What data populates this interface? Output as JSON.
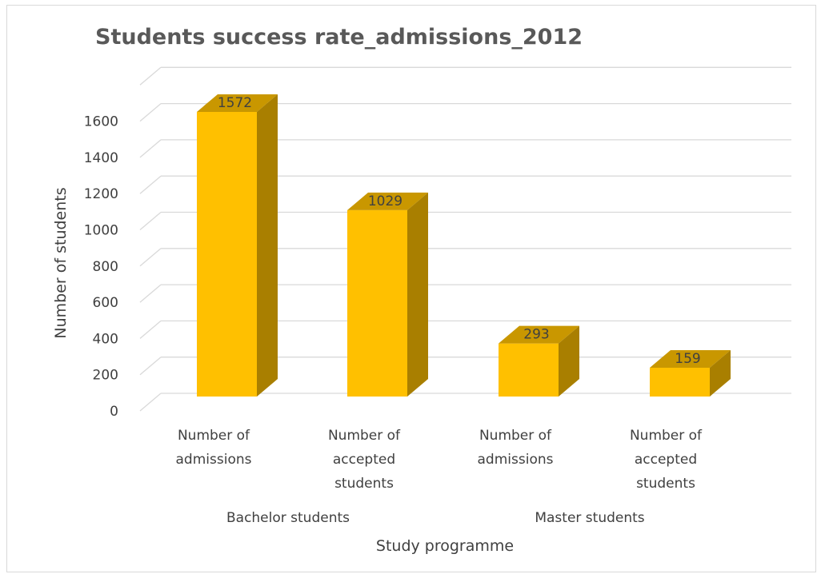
{
  "chart_data": {
    "type": "bar",
    "title": "Students success rate_admissions_2012",
    "xlabel": "Study programme",
    "ylabel": "Number of students",
    "ylim": [
      0,
      1600
    ],
    "yticks": [
      "0",
      "200",
      "400",
      "600",
      "800",
      "1000",
      "1200",
      "1400",
      "1600"
    ],
    "groups": [
      "Bachelor students",
      "Master students"
    ],
    "categories": [
      [
        "Number of",
        "admissions"
      ],
      [
        "Number of",
        "accepted",
        "students"
      ],
      [
        "Number of",
        "admissions"
      ],
      [
        "Number of",
        "accepted",
        "students"
      ]
    ],
    "values": [
      1572,
      1029,
      293,
      159
    ],
    "data_labels": [
      "1572",
      "1029",
      "293",
      "159"
    ],
    "grid": true,
    "three_d": true,
    "colors": {
      "bar_front": "#FFC000",
      "bar_top": "#C99700",
      "bar_side": "#A97F00",
      "grid": "#d9d9d9"
    }
  }
}
